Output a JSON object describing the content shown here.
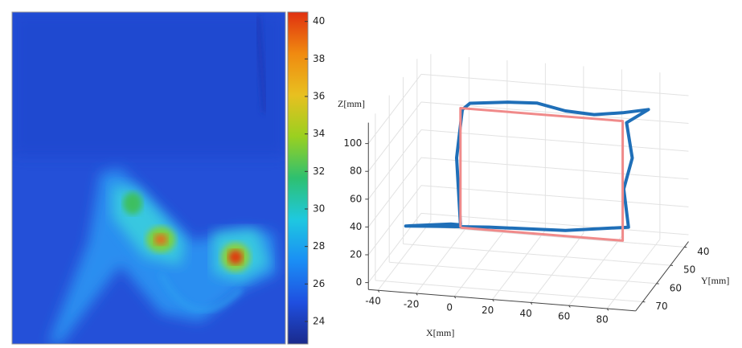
{
  "chart_data": [
    {
      "type": "heatmap",
      "clim": [
        22.8,
        40.5
      ],
      "colorbar_ticks": [
        24,
        26,
        28,
        30,
        32,
        34,
        36,
        38,
        40
      ],
      "colormap": [
        "#1a2a8c",
        "#1f4fe0",
        "#1a8ef5",
        "#1ec8e0",
        "#2ec070",
        "#9ad020",
        "#e8c020",
        "#f08a10",
        "#e03010"
      ]
    },
    {
      "type": "line3d",
      "xlabel": "X",
      "ylabel": "Y",
      "zlabel": "Z",
      "unit": "[mm]",
      "xlim": [
        -45,
        95
      ],
      "ylim": [
        37,
        75
      ],
      "zlim": [
        -5,
        115
      ],
      "xticks": [
        -40,
        -20,
        0,
        20,
        40,
        60,
        80
      ],
      "yticks": [
        40,
        50,
        60,
        70
      ],
      "zticks": [
        0,
        20,
        40,
        60,
        80,
        100
      ],
      "grid": true,
      "series": [
        {
          "color": "#1f6fb8",
          "x": [
            -15,
            -17,
            -14,
            -10,
            10,
            25,
            40,
            55,
            70,
            82,
            72,
            75,
            72,
            73,
            40,
            0,
            -30,
            -40,
            -20,
            -15
          ],
          "y": [
            50,
            50,
            50,
            50,
            50,
            50,
            50,
            50,
            50,
            48,
            50,
            50,
            52,
            50,
            50,
            50,
            52,
            55,
            50,
            50
          ],
          "z": [
            12,
            60,
            95,
            100,
            103,
            104,
            100,
            99,
            102,
            103,
            95,
            70,
            50,
            20,
            14,
            12,
            12,
            15,
            12,
            12
          ]
        },
        {
          "color": "#f08a8a",
          "x": [
            -15,
            70,
            70,
            -15,
            -15
          ],
          "y": [
            50,
            50,
            50,
            50,
            50
          ],
          "z": [
            10,
            10,
            96,
            96,
            10
          ]
        }
      ]
    }
  ]
}
